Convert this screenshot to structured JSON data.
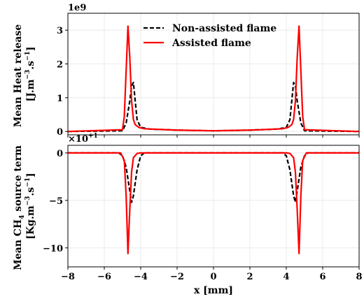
{
  "chart_data": [
    {
      "type": "line",
      "ylabel_line1": "Mean Heat release",
      "ylabel_line2": "[J.m",
      "ylabel_sup1": "−3",
      "ylabel_mid": ".s",
      "ylabel_sup2": "−1",
      "ylabel_end": "]",
      "offset_text": "1e9",
      "xlim": [
        -8,
        8
      ],
      "ylim": [
        -0.1,
        3.5
      ],
      "yticks": [
        0,
        1,
        2,
        3
      ],
      "ytick_labels": [
        "0",
        "1",
        "2",
        "3"
      ],
      "xticks": [
        -8,
        -6,
        -4,
        -2,
        0,
        2,
        4,
        6,
        8
      ],
      "grid": true,
      "legend_position": "top-center",
      "series": [
        {
          "name": "Non-assisted flame",
          "style": "dashed",
          "color": "#000000",
          "x": [
            -8,
            -5.0,
            -4.8,
            -4.6,
            -4.5,
            -4.4,
            -4.3,
            -4.2,
            -4.0,
            -3.5,
            -3.0,
            -2.0,
            -1.0,
            0,
            1.0,
            2.0,
            3.0,
            3.5,
            4.0,
            4.2,
            4.3,
            4.4,
            4.5,
            4.6,
            4.8,
            5.0,
            8
          ],
          "values": [
            0.0,
            0.02,
            0.25,
            0.9,
            1.35,
            1.45,
            0.9,
            0.35,
            0.12,
            0.07,
            0.06,
            0.04,
            0.03,
            0.02,
            0.03,
            0.04,
            0.06,
            0.07,
            0.12,
            0.35,
            0.9,
            1.45,
            1.35,
            0.9,
            0.25,
            0.02,
            0.0
          ]
        },
        {
          "name": "Assisted flame",
          "style": "solid",
          "color": "#ff0000",
          "x": [
            -8,
            -5.0,
            -4.9,
            -4.8,
            -4.7,
            -4.6,
            -4.5,
            -4.4,
            -4.3,
            -4.1,
            -3.8,
            -3.0,
            -2.0,
            -1.0,
            0,
            1.0,
            2.0,
            3.0,
            3.8,
            4.1,
            4.3,
            4.4,
            4.5,
            4.6,
            4.7,
            4.8,
            4.9,
            5.0,
            8
          ],
          "values": [
            0.0,
            0.05,
            0.45,
            1.8,
            3.12,
            2.2,
            0.9,
            0.35,
            0.2,
            0.12,
            0.08,
            0.06,
            0.04,
            0.03,
            0.02,
            0.03,
            0.04,
            0.06,
            0.08,
            0.12,
            0.2,
            0.35,
            0.9,
            2.2,
            3.12,
            1.8,
            0.45,
            0.05,
            0.0
          ]
        }
      ]
    },
    {
      "type": "line",
      "ylabel_line1_pre": "Mean CH",
      "ylabel_line1_sub": "4",
      "ylabel_line1_post": " source term",
      "ylabel_line2": "[Kg.m",
      "ylabel_sup1": "−3",
      "ylabel_mid": ".s",
      "ylabel_sup2": "−1",
      "ylabel_end": "]",
      "offset_text_pre": "×10",
      "offset_text_sup": "+1",
      "xlabel": "x [mm]",
      "xlim": [
        -8,
        8
      ],
      "ylim": [
        -12,
        0.8
      ],
      "yticks": [
        0,
        -5,
        -10
      ],
      "ytick_labels": [
        "0",
        "−5",
        "−10"
      ],
      "xticks": [
        -8,
        -6,
        -4,
        -2,
        0,
        2,
        4,
        6,
        8
      ],
      "xtick_labels": [
        "−8",
        "−6",
        "−4",
        "−2",
        "0",
        "2",
        "4",
        "6",
        "8"
      ],
      "grid": true,
      "series": [
        {
          "name": "Non-assisted flame",
          "style": "dashed",
          "color": "#000000",
          "x": [
            -8,
            -5.2,
            -5.0,
            -4.8,
            -4.6,
            -4.5,
            -4.4,
            -4.2,
            -4.0,
            -3.8,
            3.8,
            4.0,
            4.2,
            4.4,
            4.5,
            4.6,
            4.8,
            5.0,
            5.2,
            8
          ],
          "values": [
            0.0,
            0.0,
            -0.3,
            -1.5,
            -4.0,
            -5.2,
            -4.5,
            -1.8,
            -0.3,
            0.0,
            0.0,
            -0.3,
            -1.8,
            -4.5,
            -5.2,
            -4.0,
            -1.5,
            -0.3,
            0.0,
            0.0
          ]
        },
        {
          "name": "Assisted flame",
          "style": "solid",
          "color": "#ff0000",
          "x": [
            -8,
            -5.1,
            -4.9,
            -4.8,
            -4.7,
            -4.6,
            -4.5,
            -4.4,
            -4.2,
            -4.0,
            4.0,
            4.2,
            4.4,
            4.5,
            4.6,
            4.7,
            4.8,
            4.9,
            5.1,
            8
          ],
          "values": [
            0.0,
            0.0,
            -0.8,
            -4.5,
            -10.6,
            -6.0,
            -2.0,
            -0.5,
            -0.05,
            0.0,
            0.0,
            -0.05,
            -0.5,
            -2.0,
            -6.0,
            -10.6,
            -4.5,
            -0.8,
            0.0,
            0.0
          ]
        }
      ]
    }
  ]
}
